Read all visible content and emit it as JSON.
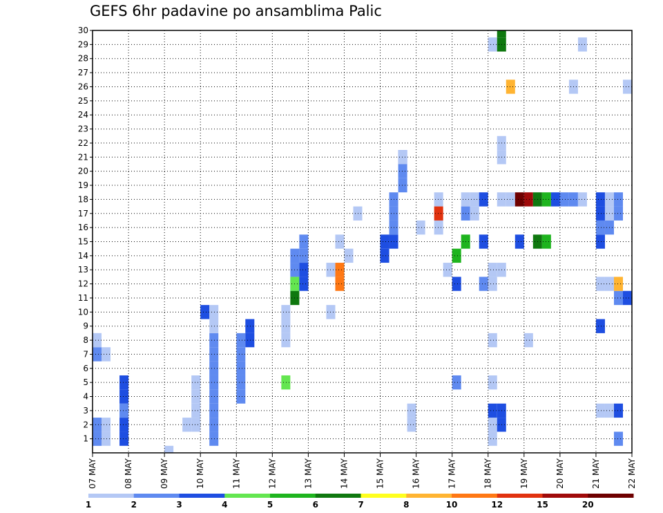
{
  "chart_data": {
    "type": "heatmap",
    "title": "GEFS 6hr padavine po ansamblima Palic",
    "xlabel": "",
    "ylabel": "",
    "x_steps_per_day": 4,
    "x_range_steps": [
      0,
      60
    ],
    "ylim": [
      0,
      30
    ],
    "x_tick_labels": [
      "07 MAY",
      "08 MAY",
      "09 MAY",
      "10 MAY",
      "11 MAY",
      "12 MAY",
      "13 MAY",
      "14 MAY",
      "15 MAY",
      "16 MAY",
      "17 MAY",
      "18 MAY",
      "19 MAY",
      "20 MAY",
      "21 MAY",
      "22 MAY"
    ],
    "y_tick_labels": [
      1,
      2,
      3,
      4,
      5,
      6,
      7,
      8,
      9,
      10,
      11,
      12,
      13,
      14,
      15,
      16,
      17,
      18,
      19,
      20,
      21,
      22,
      23,
      24,
      25,
      26,
      27,
      28,
      29,
      30
    ],
    "grid": "dotted",
    "colorbar": {
      "levels": [
        "1",
        "2",
        "3",
        "4",
        "5",
        "6",
        "7",
        "8",
        "10",
        "12",
        "15",
        "20"
      ],
      "colors": [
        "#b4c8f5",
        "#5f8af0",
        "#1e4ee1",
        "#64e650",
        "#1eb41e",
        "#0f780f",
        "#ffff1e",
        "#ffb432",
        "#ff7814",
        "#e1320f",
        "#a00a0a",
        "#6e0000"
      ]
    },
    "cells": [
      [
        1,
        1,
        1
      ],
      [
        2,
        1,
        1
      ],
      [
        8,
        1,
        1
      ],
      [
        1,
        2,
        1
      ],
      [
        2,
        2,
        1
      ],
      [
        7,
        2,
        1
      ],
      [
        8,
        1,
        1
      ],
      [
        1,
        1,
        2
      ],
      [
        2,
        1,
        2
      ],
      [
        7,
        1,
        2
      ],
      [
        1,
        3,
        4
      ],
      [
        2,
        3,
        4
      ],
      [
        3,
        2,
        4
      ],
      [
        4,
        3,
        4
      ],
      [
        5,
        3,
        4
      ],
      [
        0,
        1,
        9
      ],
      [
        2,
        1,
        11
      ],
      [
        2,
        1,
        12
      ],
      [
        3,
        1,
        12
      ],
      [
        4,
        1,
        12
      ],
      [
        5,
        1,
        12
      ],
      [
        10,
        3,
        13
      ],
      [
        1,
        2,
        14
      ],
      [
        2,
        2,
        14
      ],
      [
        3,
        2,
        14
      ],
      [
        4,
        2,
        14
      ],
      [
        5,
        2,
        14
      ],
      [
        6,
        2,
        14
      ],
      [
        7,
        2,
        14
      ],
      [
        8,
        2,
        14
      ],
      [
        9,
        1,
        14
      ],
      [
        10,
        1,
        14
      ],
      [
        4,
        2,
        17
      ],
      [
        5,
        2,
        17
      ],
      [
        6,
        2,
        17
      ],
      [
        7,
        2,
        17
      ],
      [
        8,
        2,
        17
      ],
      [
        8,
        3,
        18
      ],
      [
        9,
        3,
        18
      ],
      [
        12,
        2,
        23
      ],
      [
        13,
        2,
        23
      ],
      [
        14,
        2,
        23
      ],
      [
        5,
        4,
        22
      ],
      [
        8,
        1,
        22
      ],
      [
        9,
        1,
        22
      ],
      [
        10,
        1,
        22
      ],
      [
        11,
        6,
        23
      ],
      [
        12,
        4,
        23
      ],
      [
        12,
        3,
        24
      ],
      [
        13,
        3,
        24
      ],
      [
        14,
        2,
        24
      ],
      [
        15,
        2,
        24
      ],
      [
        10,
        1,
        27
      ],
      [
        15,
        1,
        28
      ],
      [
        14,
        1,
        29
      ],
      [
        17,
        1,
        30
      ],
      [
        14,
        3,
        33
      ],
      [
        15,
        3,
        33
      ],
      [
        15,
        3,
        34
      ],
      [
        16,
        2,
        34
      ],
      [
        17,
        2,
        34
      ],
      [
        18,
        2,
        34
      ],
      [
        19,
        2,
        35
      ],
      [
        20,
        2,
        35
      ],
      [
        21,
        3,
        35
      ],
      [
        21,
        1,
        35
      ],
      [
        2,
        1,
        36
      ],
      [
        3,
        1,
        36
      ],
      [
        12,
        9,
        28
      ],
      [
        13,
        9,
        28
      ],
      [
        13,
        1,
        27
      ],
      [
        18,
        1,
        39
      ],
      [
        17,
        10,
        39
      ],
      [
        16,
        1,
        39
      ],
      [
        16,
        1,
        37
      ],
      [
        5,
        2,
        41
      ],
      [
        12,
        3,
        41
      ],
      [
        14,
        5,
        41
      ],
      [
        13,
        1,
        40
      ],
      [
        15,
        5,
        42
      ],
      [
        17,
        2,
        42
      ],
      [
        18,
        1,
        42
      ],
      [
        18,
        1,
        43
      ],
      [
        17,
        1,
        43
      ],
      [
        15,
        3,
        44
      ],
      [
        12,
        2,
        44
      ],
      [
        1,
        1,
        45
      ],
      [
        2,
        1,
        45
      ],
      [
        3,
        3,
        45
      ],
      [
        5,
        1,
        45
      ],
      [
        8,
        1,
        45
      ],
      [
        12,
        1,
        45
      ],
      [
        13,
        1,
        45
      ],
      [
        13,
        1,
        46
      ],
      [
        18,
        1,
        46
      ],
      [
        2,
        3,
        46
      ],
      [
        3,
        3,
        46
      ],
      [
        22,
        1,
        46
      ],
      [
        21,
        1,
        46
      ],
      [
        29,
        1,
        45
      ],
      [
        30,
        6,
        46
      ],
      [
        29,
        6,
        46
      ],
      [
        18,
        1,
        47
      ],
      [
        26,
        8,
        47
      ],
      [
        18,
        3,
        44
      ],
      [
        18,
        12,
        48
      ],
      [
        18,
        11,
        49
      ],
      [
        18,
        6,
        50
      ],
      [
        18,
        5,
        51
      ],
      [
        18,
        3,
        52
      ],
      [
        15,
        3,
        48
      ],
      [
        15,
        6,
        50
      ],
      [
        15,
        5,
        51
      ],
      [
        8,
        1,
        49
      ],
      [
        18,
        2,
        53
      ],
      [
        18,
        2,
        54
      ],
      [
        18,
        1,
        55
      ],
      [
        26,
        1,
        54
      ],
      [
        29,
        1,
        55
      ],
      [
        1,
        2,
        59
      ],
      [
        3,
        3,
        59
      ],
      [
        3,
        1,
        57
      ],
      [
        3,
        1,
        58
      ],
      [
        9,
        3,
        57
      ],
      [
        11,
        2,
        59
      ],
      [
        11,
        3,
        60
      ],
      [
        12,
        1,
        57
      ],
      [
        12,
        1,
        58
      ],
      [
        12,
        8,
        59
      ],
      [
        15,
        3,
        57
      ],
      [
        16,
        2,
        57
      ],
      [
        16,
        2,
        58
      ],
      [
        17,
        3,
        57
      ],
      [
        17,
        1,
        58
      ],
      [
        17,
        2,
        59
      ],
      [
        18,
        3,
        57
      ],
      [
        18,
        1,
        58
      ],
      [
        18,
        2,
        59
      ],
      [
        26,
        1,
        60
      ]
    ]
  }
}
